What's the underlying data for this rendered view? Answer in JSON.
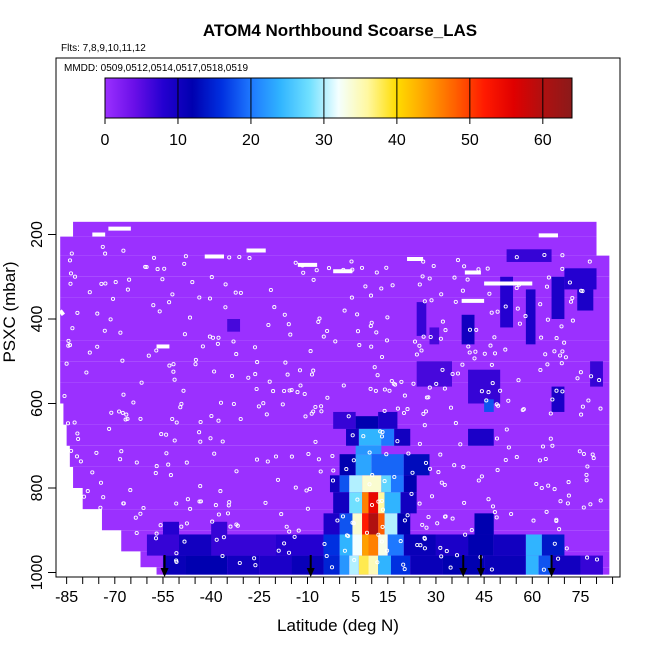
{
  "chart_data": {
    "type": "heatmap",
    "title": "ATOM4 Northbound Scoarse_LAS",
    "subtitle_flights": "Flts: 7,8,9,10,11,12",
    "subtitle_dates": "MMDD: 0509,0512,0514,0517,0518,0519",
    "xlabel": "Latitude (deg N)",
    "ylabel": "PSXC (mbar)",
    "xlim": [
      -88,
      87
    ],
    "ylim": [
      1010,
      90
    ],
    "y_reversed": true,
    "x_ticks": [
      -85,
      -70,
      -55,
      -40,
      -25,
      -10,
      5,
      15,
      30,
      45,
      60,
      75
    ],
    "x_tick_labels": [
      "-85",
      "-70",
      "-55",
      "-40",
      "-25",
      "-10",
      "5",
      "15",
      "30",
      "45",
      "60",
      "75"
    ],
    "y_ticks": [
      200,
      400,
      600,
      800,
      1000
    ],
    "y_tick_labels": [
      "200",
      "400",
      "600",
      "800",
      "1000"
    ],
    "colorbar": {
      "min": 0,
      "max": 64,
      "ticks": [
        0,
        10,
        20,
        30,
        40,
        50,
        60
      ],
      "tick_labels": [
        "0",
        "10",
        "20",
        "30",
        "40",
        "50",
        "60"
      ],
      "colors": [
        "#9b30ff",
        "#6a0fe8",
        "#2400d0",
        "#0000b0",
        "#0030e0",
        "#1e78ff",
        "#30b4ff",
        "#70e0ff",
        "#f4ffff",
        "#fff8a0",
        "#ffdc00",
        "#ffa000",
        "#ff6000",
        "#ff1a00",
        "#e00000",
        "#b01010",
        "#8b1a1a"
      ]
    },
    "background_value": 0,
    "coverage_rows": [
      {
        "p": 185,
        "lat": [
          -83,
          80
        ]
      },
      {
        "p": 225,
        "lat": [
          -87,
          80
        ]
      },
      {
        "p": 275,
        "lat": [
          -87,
          84
        ]
      },
      {
        "p": 325,
        "lat": [
          -87,
          84
        ]
      },
      {
        "p": 375,
        "lat": [
          -87,
          84
        ]
      },
      {
        "p": 425,
        "lat": [
          -87,
          84
        ]
      },
      {
        "p": 475,
        "lat": [
          -87,
          84
        ]
      },
      {
        "p": 525,
        "lat": [
          -87,
          84
        ]
      },
      {
        "p": 575,
        "lat": [
          -87,
          84
        ]
      },
      {
        "p": 625,
        "lat": [
          -86,
          84
        ]
      },
      {
        "p": 675,
        "lat": [
          -85,
          84
        ]
      },
      {
        "p": 725,
        "lat": [
          -84,
          84
        ]
      },
      {
        "p": 775,
        "lat": [
          -83,
          84
        ]
      },
      {
        "p": 825,
        "lat": [
          -80,
          84
        ]
      },
      {
        "p": 875,
        "lat": [
          -74,
          84
        ]
      },
      {
        "p": 925,
        "lat": [
          -68,
          84
        ]
      },
      {
        "p": 975,
        "lat": [
          -62,
          84
        ]
      },
      {
        "p": 1000,
        "lat": [
          -57,
          84
        ]
      }
    ],
    "cells": [
      {
        "lat": [
          52,
          66
        ],
        "p": [
          235,
          265
        ],
        "v": 7
      },
      {
        "lat": [
          70,
          80
        ],
        "p": [
          280,
          330
        ],
        "v": 8
      },
      {
        "lat": [
          74,
          79
        ],
        "p": [
          330,
          380
        ],
        "v": 9
      },
      {
        "lat": [
          -35,
          -31
        ],
        "p": [
          400,
          430
        ],
        "v": 6
      },
      {
        "lat": [
          24,
          27
        ],
        "p": [
          360,
          440
        ],
        "v": 7
      },
      {
        "lat": [
          28,
          31
        ],
        "p": [
          420,
          460
        ],
        "v": 6
      },
      {
        "lat": [
          38,
          42
        ],
        "p": [
          390,
          460
        ],
        "v": 10
      },
      {
        "lat": [
          50,
          54
        ],
        "p": [
          300,
          420
        ],
        "v": 8
      },
      {
        "lat": [
          58,
          61
        ],
        "p": [
          330,
          460
        ],
        "v": 9
      },
      {
        "lat": [
          66,
          70
        ],
        "p": [
          300,
          400
        ],
        "v": 9
      },
      {
        "lat": [
          24,
          35
        ],
        "p": [
          500,
          560
        ],
        "v": 6
      },
      {
        "lat": [
          40,
          50
        ],
        "p": [
          520,
          600
        ],
        "v": 7
      },
      {
        "lat": [
          45,
          48
        ],
        "p": [
          590,
          620
        ],
        "v": 18
      },
      {
        "lat": [
          66,
          70
        ],
        "p": [
          560,
          620
        ],
        "v": 9
      },
      {
        "lat": [
          78,
          82
        ],
        "p": [
          500,
          560
        ],
        "v": 7
      },
      {
        "lat": [
          -2,
          5
        ],
        "p": [
          620,
          660
        ],
        "v": 7
      },
      {
        "lat": [
          5,
          12
        ],
        "p": [
          630,
          660
        ],
        "v": 12
      },
      {
        "lat": [
          12,
          18
        ],
        "p": [
          620,
          660
        ],
        "v": 9
      },
      {
        "lat": [
          2,
          6
        ],
        "p": [
          660,
          700
        ],
        "v": 10
      },
      {
        "lat": [
          6,
          13
        ],
        "p": [
          660,
          700
        ],
        "v": 24
      },
      {
        "lat": [
          13,
          17
        ],
        "p": [
          660,
          700
        ],
        "v": 20
      },
      {
        "lat": [
          17,
          22
        ],
        "p": [
          660,
          700
        ],
        "v": 10
      },
      {
        "lat": [
          40,
          48
        ],
        "p": [
          660,
          700
        ],
        "v": 9
      },
      {
        "lat": [
          5,
          13
        ],
        "p": [
          700,
          720
        ],
        "v": 22
      },
      {
        "lat": [
          0,
          5
        ],
        "p": [
          720,
          770
        ],
        "v": 12
      },
      {
        "lat": [
          5,
          10
        ],
        "p": [
          720,
          770
        ],
        "v": 23
      },
      {
        "lat": [
          10,
          20
        ],
        "p": [
          720,
          770
        ],
        "v": 19
      },
      {
        "lat": [
          20,
          28
        ],
        "p": [
          720,
          770
        ],
        "v": 13
      },
      {
        "lat": [
          -3,
          0
        ],
        "p": [
          770,
          810
        ],
        "v": 10
      },
      {
        "lat": [
          0,
          3
        ],
        "p": [
          770,
          810
        ],
        "v": 18
      },
      {
        "lat": [
          3,
          7
        ],
        "p": [
          770,
          810
        ],
        "v": 30
      },
      {
        "lat": [
          7,
          13
        ],
        "p": [
          770,
          810
        ],
        "v": 34
      },
      {
        "lat": [
          13,
          16
        ],
        "p": [
          770,
          810
        ],
        "v": 27
      },
      {
        "lat": [
          16,
          20
        ],
        "p": [
          770,
          810
        ],
        "v": 20
      },
      {
        "lat": [
          20,
          24
        ],
        "p": [
          770,
          810
        ],
        "v": 12
      },
      {
        "lat": [
          -2,
          3
        ],
        "p": [
          810,
          860
        ],
        "v": 10
      },
      {
        "lat": [
          3,
          7
        ],
        "p": [
          810,
          860
        ],
        "v": 28
      },
      {
        "lat": [
          7,
          9
        ],
        "p": [
          810,
          860
        ],
        "v": 46
      },
      {
        "lat": [
          9,
          12
        ],
        "p": [
          810,
          860
        ],
        "v": 55
      },
      {
        "lat": [
          12,
          14
        ],
        "p": [
          810,
          860
        ],
        "v": 36
      },
      {
        "lat": [
          14,
          19
        ],
        "p": [
          810,
          860
        ],
        "v": 24
      },
      {
        "lat": [
          19,
          24
        ],
        "p": [
          810,
          860
        ],
        "v": 10
      },
      {
        "lat": [
          -5,
          0
        ],
        "p": [
          860,
          910
        ],
        "v": 9
      },
      {
        "lat": [
          0,
          4
        ],
        "p": [
          860,
          910
        ],
        "v": 18
      },
      {
        "lat": [
          4,
          7
        ],
        "p": [
          860,
          910
        ],
        "v": 34
      },
      {
        "lat": [
          7,
          9
        ],
        "p": [
          860,
          910
        ],
        "v": 52
      },
      {
        "lat": [
          9,
          12
        ],
        "p": [
          860,
          910
        ],
        "v": 60
      },
      {
        "lat": [
          12,
          14
        ],
        "p": [
          860,
          910
        ],
        "v": 48
      },
      {
        "lat": [
          14,
          18
        ],
        "p": [
          860,
          910
        ],
        "v": 30
      },
      {
        "lat": [
          18,
          22
        ],
        "p": [
          860,
          910
        ],
        "v": 12
      },
      {
        "lat": [
          42,
          48
        ],
        "p": [
          860,
          910
        ],
        "v": 12
      },
      {
        "lat": [
          -55,
          -50
        ],
        "p": [
          880,
          930
        ],
        "v": 8
      },
      {
        "lat": [
          -40,
          -35
        ],
        "p": [
          880,
          930
        ],
        "v": 7
      },
      {
        "lat": [
          -60,
          -20
        ],
        "p": [
          910,
          960
        ],
        "v": 7
      },
      {
        "lat": [
          -50,
          -40
        ],
        "p": [
          910,
          960
        ],
        "v": 10
      },
      {
        "lat": [
          -20,
          -5
        ],
        "p": [
          910,
          960
        ],
        "v": 8
      },
      {
        "lat": [
          -5,
          0
        ],
        "p": [
          910,
          960
        ],
        "v": 16
      },
      {
        "lat": [
          0,
          4
        ],
        "p": [
          910,
          960
        ],
        "v": 24
      },
      {
        "lat": [
          4,
          7
        ],
        "p": [
          910,
          960
        ],
        "v": 32
      },
      {
        "lat": [
          7,
          9
        ],
        "p": [
          910,
          960
        ],
        "v": 44
      },
      {
        "lat": [
          9,
          12
        ],
        "p": [
          910,
          960
        ],
        "v": 46
      },
      {
        "lat": [
          12,
          15
        ],
        "p": [
          910,
          960
        ],
        "v": 33
      },
      {
        "lat": [
          15,
          20
        ],
        "p": [
          910,
          960
        ],
        "v": 20
      },
      {
        "lat": [
          20,
          30
        ],
        "p": [
          910,
          960
        ],
        "v": 11
      },
      {
        "lat": [
          30,
          40
        ],
        "p": [
          910,
          960
        ],
        "v": 9
      },
      {
        "lat": [
          40,
          48
        ],
        "p": [
          910,
          960
        ],
        "v": 12
      },
      {
        "lat": [
          48,
          58
        ],
        "p": [
          910,
          960
        ],
        "v": 10
      },
      {
        "lat": [
          58,
          63
        ],
        "p": [
          910,
          960
        ],
        "v": 24
      },
      {
        "lat": [
          63,
          70
        ],
        "p": [
          910,
          960
        ],
        "v": 14
      },
      {
        "lat": [
          -55,
          -48
        ],
        "p": [
          960,
          1005
        ],
        "v": 11
      },
      {
        "lat": [
          -48,
          -35
        ],
        "p": [
          960,
          1005
        ],
        "v": 12
      },
      {
        "lat": [
          -35,
          -25
        ],
        "p": [
          960,
          1005
        ],
        "v": 10
      },
      {
        "lat": [
          -25,
          -15
        ],
        "p": [
          960,
          1005
        ],
        "v": 9
      },
      {
        "lat": [
          -15,
          -5
        ],
        "p": [
          960,
          1005
        ],
        "v": 11
      },
      {
        "lat": [
          -5,
          0
        ],
        "p": [
          960,
          1005
        ],
        "v": 15
      },
      {
        "lat": [
          0,
          3
        ],
        "p": [
          960,
          1005
        ],
        "v": 22
      },
      {
        "lat": [
          3,
          6
        ],
        "p": [
          960,
          1005
        ],
        "v": 30
      },
      {
        "lat": [
          6,
          9
        ],
        "p": [
          960,
          1005
        ],
        "v": 38
      },
      {
        "lat": [
          9,
          12
        ],
        "p": [
          960,
          1005
        ],
        "v": 35
      },
      {
        "lat": [
          12,
          16
        ],
        "p": [
          960,
          1005
        ],
        "v": 24
      },
      {
        "lat": [
          16,
          22
        ],
        "p": [
          960,
          1005
        ],
        "v": 16
      },
      {
        "lat": [
          22,
          32
        ],
        "p": [
          960,
          1005
        ],
        "v": 11
      },
      {
        "lat": [
          32,
          45
        ],
        "p": [
          960,
          1005
        ],
        "v": 12
      },
      {
        "lat": [
          45,
          58
        ],
        "p": [
          960,
          1005
        ],
        "v": 11
      },
      {
        "lat": [
          58,
          62
        ],
        "p": [
          960,
          1005
        ],
        "v": 24
      },
      {
        "lat": [
          62,
          66
        ],
        "p": [
          960,
          1005
        ],
        "v": 18
      },
      {
        "lat": [
          66,
          75
        ],
        "p": [
          960,
          1005
        ],
        "v": 10
      },
      {
        "lat": [
          75,
          82
        ],
        "p": [
          960,
          1005
        ],
        "v": 7
      }
    ],
    "flight_track_segments": [
      {
        "lat": [
          -72,
          -65
        ],
        "p": [
          186,
          186
        ]
      },
      {
        "lat": [
          -77,
          -73
        ],
        "p": [
          200,
          200
        ]
      },
      {
        "lat": [
          -29,
          -23
        ],
        "p": [
          238,
          238
        ]
      },
      {
        "lat": [
          -42,
          -36
        ],
        "p": [
          252,
          252
        ]
      },
      {
        "lat": [
          -13,
          -7
        ],
        "p": [
          272,
          272
        ]
      },
      {
        "lat": [
          -2,
          4
        ],
        "p": [
          287,
          287
        ]
      },
      {
        "lat": [
          21,
          26
        ],
        "p": [
          258,
          258
        ]
      },
      {
        "lat": [
          39,
          44
        ],
        "p": [
          290,
          290
        ]
      },
      {
        "lat": [
          45,
          60
        ],
        "p": [
          316,
          316
        ]
      },
      {
        "lat": [
          38,
          45
        ],
        "p": [
          357,
          357
        ]
      },
      {
        "lat": [
          62,
          68
        ],
        "p": [
          202,
          202
        ]
      },
      {
        "lat": [
          -57,
          -53
        ],
        "p": [
          465,
          465
        ]
      },
      {
        "lat": [
          -87,
          -86
        ],
        "p": [
          380,
          390
        ]
      }
    ],
    "arrows_lat": [
      -54.5,
      -9,
      38.5,
      44,
      66
    ]
  }
}
